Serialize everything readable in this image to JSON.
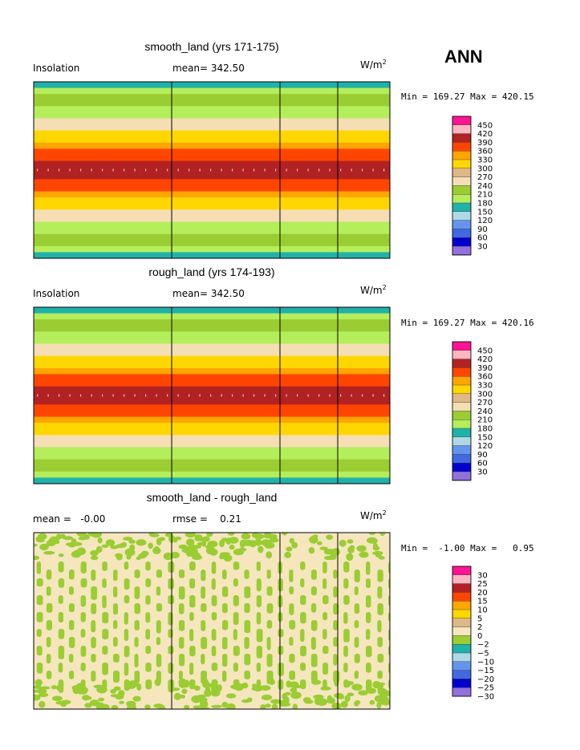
{
  "season": "ANN",
  "unit_base": "W/m",
  "unit_exp": "2",
  "colors": {
    "insolation_levels": [
      "#9370db",
      "#0000cd",
      "#4169e1",
      "#6495ed",
      "#add8e6",
      "#20b2aa",
      "#b4ee5a",
      "#9acd32",
      "#f5deb3",
      "#deb887",
      "#ffd700",
      "#ffa500",
      "#ff4500",
      "#b22222",
      "#ffb6c1",
      "#ff1493"
    ],
    "diff_levels": [
      "#9370db",
      "#0000cd",
      "#4169e1",
      "#6495ed",
      "#add8e6",
      "#20b2aa",
      "#9acd32",
      "#f5e6be",
      "#deb887",
      "#ffd700",
      "#ffa500",
      "#ff4500",
      "#b22222",
      "#ffb6c1",
      "#ff1493"
    ]
  },
  "panels": [
    {
      "title": "smooth_land (yrs 171-175)",
      "left_label": "Insolation",
      "mid_label": "mean= 342.50",
      "minmax": "Min = 169.27 Max = 420.15",
      "legend_ticks": [
        "450",
        "420",
        "390",
        "360",
        "330",
        "300",
        "270",
        "240",
        "210",
        "180",
        "150",
        "120",
        "90",
        "60",
        "30"
      ]
    },
    {
      "title": "rough_land (yrs 174-193)",
      "left_label": "Insolation",
      "mid_label": "mean= 342.50",
      "minmax": "Min = 169.27 Max = 420.16",
      "legend_ticks": [
        "450",
        "420",
        "390",
        "360",
        "330",
        "300",
        "270",
        "240",
        "210",
        "180",
        "150",
        "120",
        "90",
        "60",
        "30"
      ]
    },
    {
      "title": "smooth_land - rough_land",
      "left_label": "mean =   -0.00",
      "mid_label": "rmse =    0.21",
      "minmax": "Min =  -1.00 Max =   0.95",
      "legend_ticks": [
        "30",
        "25",
        "20",
        "15",
        "10",
        "5",
        "2",
        "0",
        "−2",
        "−5",
        "−10",
        "−15",
        "−20",
        "−25",
        "−30"
      ]
    }
  ],
  "chart_data": [
    {
      "type": "heatmap",
      "title": "smooth_land (yrs 171-175)",
      "variable": "Insolation",
      "units": "W/m2",
      "mean": 342.5,
      "min": 169.27,
      "max": 420.15,
      "contour_levels": [
        30,
        60,
        90,
        120,
        150,
        180,
        210,
        240,
        270,
        300,
        330,
        360,
        390,
        420,
        450
      ],
      "zonal_band_values": [
        170,
        185,
        220,
        220,
        205,
        185,
        258,
        268,
        300,
        318,
        340,
        362,
        380,
        405,
        405,
        405,
        380,
        362,
        340,
        318,
        300,
        268,
        258,
        185,
        205,
        220,
        220,
        185,
        170
      ]
    },
    {
      "type": "heatmap",
      "title": "rough_land (yrs 174-193)",
      "variable": "Insolation",
      "units": "W/m2",
      "mean": 342.5,
      "min": 169.27,
      "max": 420.16,
      "contour_levels": [
        30,
        60,
        90,
        120,
        150,
        180,
        210,
        240,
        270,
        300,
        330,
        360,
        390,
        420,
        450
      ],
      "zonal_band_values": [
        170,
        185,
        220,
        220,
        205,
        185,
        258,
        268,
        300,
        318,
        340,
        362,
        380,
        405,
        405,
        405,
        380,
        362,
        340,
        318,
        300,
        268,
        258,
        185,
        205,
        220,
        220,
        185,
        170
      ]
    },
    {
      "type": "heatmap",
      "title": "smooth_land - rough_land",
      "units": "W/m2",
      "mean": -0.0,
      "rmse": 0.21,
      "min": -1.0,
      "max": 0.95,
      "contour_levels": [
        -30,
        -25,
        -20,
        -15,
        -10,
        -5,
        -2,
        0,
        2,
        5,
        10,
        15,
        20,
        25,
        30
      ],
      "pattern_values": [
        -1,
        1
      ]
    }
  ]
}
